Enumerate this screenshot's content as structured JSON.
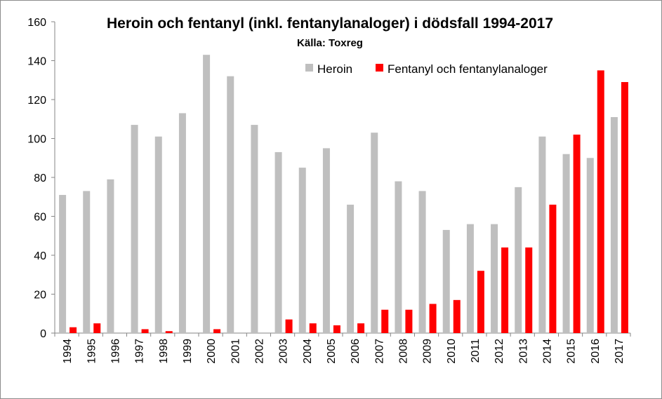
{
  "chart_data": {
    "type": "bar",
    "title": "Heroin och fentanyl (inkl. fentanylanaloger) i dödsfall 1994-2017",
    "subtitle": "Källa: Toxreg",
    "xlabel": "",
    "ylabel": "",
    "ylim": [
      0,
      160
    ],
    "yticks": [
      0,
      20,
      40,
      60,
      80,
      100,
      120,
      140,
      160
    ],
    "grid": false,
    "legend_position": "top-right",
    "categories": [
      "1994",
      "1995",
      "1996",
      "1997",
      "1998",
      "1999",
      "2000",
      "2001",
      "2002",
      "2003",
      "2004",
      "2005",
      "2006",
      "2007",
      "2008",
      "2009",
      "2010",
      "2011",
      "2012",
      "2013",
      "2014",
      "2015",
      "2016",
      "2017"
    ],
    "series": [
      {
        "name": "Heroin",
        "color": "#bfbfbf",
        "values": [
          71,
          73,
          79,
          107,
          101,
          113,
          143,
          132,
          107,
          93,
          85,
          95,
          66,
          103,
          78,
          73,
          53,
          56,
          56,
          75,
          101,
          92,
          90,
          111
        ]
      },
      {
        "name": "Fentanyl och fentanylanaloger",
        "color": "#ff0000",
        "values": [
          3,
          5,
          0,
          2,
          1,
          0,
          2,
          0,
          0,
          7,
          5,
          4,
          5,
          12,
          12,
          15,
          17,
          32,
          44,
          44,
          66,
          102,
          135,
          129
        ]
      }
    ]
  }
}
